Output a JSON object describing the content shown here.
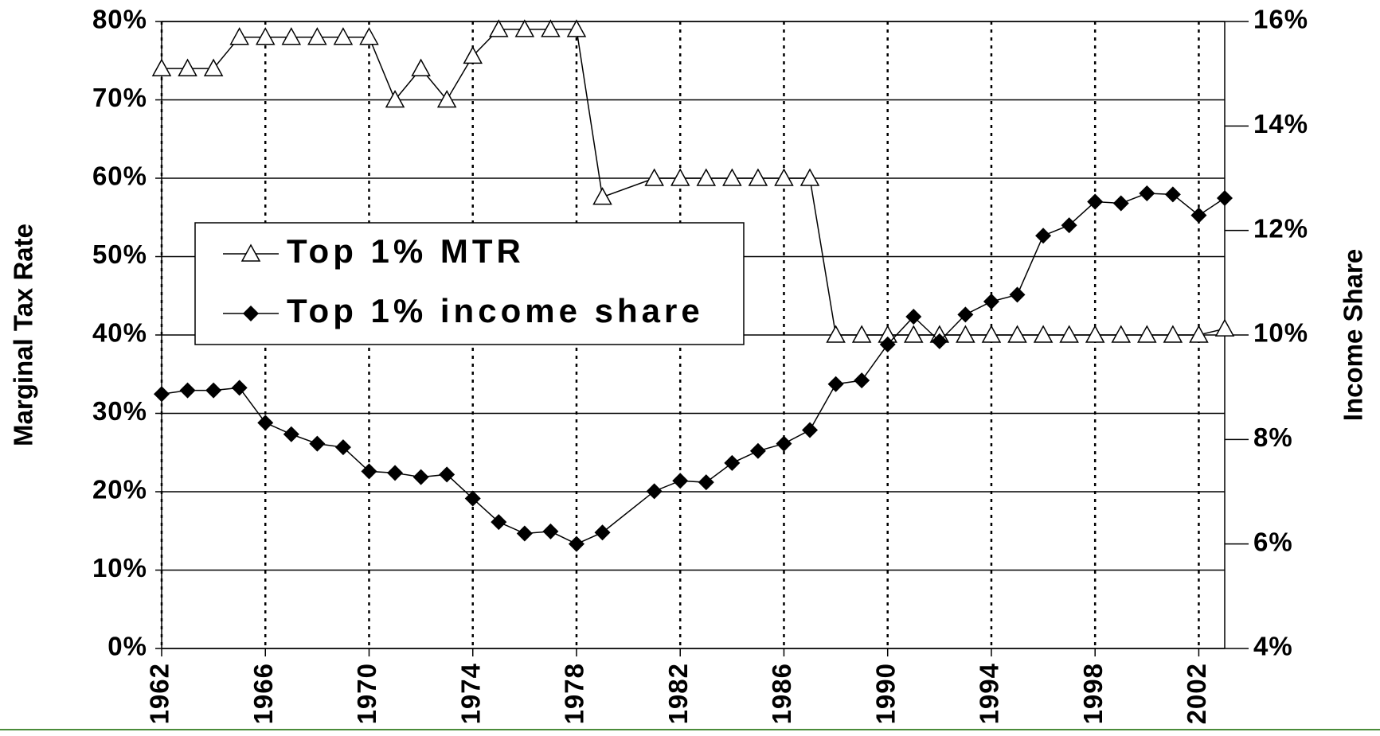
{
  "chart_data": {
    "type": "line",
    "x": [
      1962,
      1963,
      1964,
      1965,
      1966,
      1967,
      1968,
      1969,
      1970,
      1971,
      1972,
      1973,
      1974,
      1975,
      1976,
      1977,
      1978,
      1979,
      1981,
      1982,
      1983,
      1984,
      1985,
      1986,
      1987,
      1988,
      1989,
      1990,
      1991,
      1992,
      1993,
      1994,
      1995,
      1996,
      1997,
      1998,
      1999,
      2000,
      2001,
      2002,
      2003
    ],
    "xlim": [
      1962,
      2003
    ],
    "xticks": [
      1962,
      1966,
      1970,
      1974,
      1978,
      1982,
      1986,
      1990,
      1994,
      1998,
      2002
    ],
    "y_label": "Marginal Tax Rate",
    "y2_label": "Income Share",
    "ylim": [
      0,
      80
    ],
    "yticks": [
      {
        "value": 0,
        "label": "0%"
      },
      {
        "value": 10,
        "label": "10%"
      },
      {
        "value": 20,
        "label": "20%"
      },
      {
        "value": 30,
        "label": "30%"
      },
      {
        "value": 40,
        "label": "40%"
      },
      {
        "value": 50,
        "label": "50%"
      },
      {
        "value": 60,
        "label": "60%"
      },
      {
        "value": 70,
        "label": "70%"
      },
      {
        "value": 80,
        "label": "80%"
      }
    ],
    "y2lim": [
      4,
      16
    ],
    "y2ticks": [
      {
        "value": 4,
        "label": "4%"
      },
      {
        "value": 6,
        "label": "6%"
      },
      {
        "value": 8,
        "label": "8%"
      },
      {
        "value": 10,
        "label": "10%"
      },
      {
        "value": 12,
        "label": "12%"
      },
      {
        "value": 14,
        "label": "14%"
      },
      {
        "value": 16,
        "label": "16%"
      }
    ],
    "grid": true,
    "legend": "left",
    "series": [
      {
        "name": "Top 1% MTR",
        "marker": "triangle",
        "color": "#000000",
        "values": [
          74,
          74,
          74,
          78,
          78,
          78,
          78,
          78,
          78,
          70,
          74,
          70,
          75.6,
          79,
          79,
          79,
          79,
          57.6,
          60,
          60,
          60,
          60,
          60,
          60,
          60,
          40,
          40,
          40,
          40,
          40,
          40,
          40,
          40,
          40,
          40,
          40,
          40,
          40,
          40,
          40,
          40.8
        ]
      },
      {
        "name": "Top 1% income share",
        "marker": "diamond",
        "color": "#000000",
        "axis": "y2",
        "values": [
          8.87,
          8.94,
          8.94,
          8.99,
          8.32,
          8.1,
          7.92,
          7.85,
          7.39,
          7.36,
          7.28,
          7.33,
          6.87,
          6.42,
          6.2,
          6.24,
          6.0,
          6.22,
          7.01,
          7.21,
          7.18,
          7.55,
          7.78,
          7.92,
          8.18,
          9.06,
          9.13,
          9.82,
          10.35,
          9.88,
          10.39,
          10.64,
          10.77,
          11.9,
          12.1,
          12.55,
          12.52,
          12.71,
          12.69,
          12.29,
          12.62
        ]
      }
    ]
  }
}
